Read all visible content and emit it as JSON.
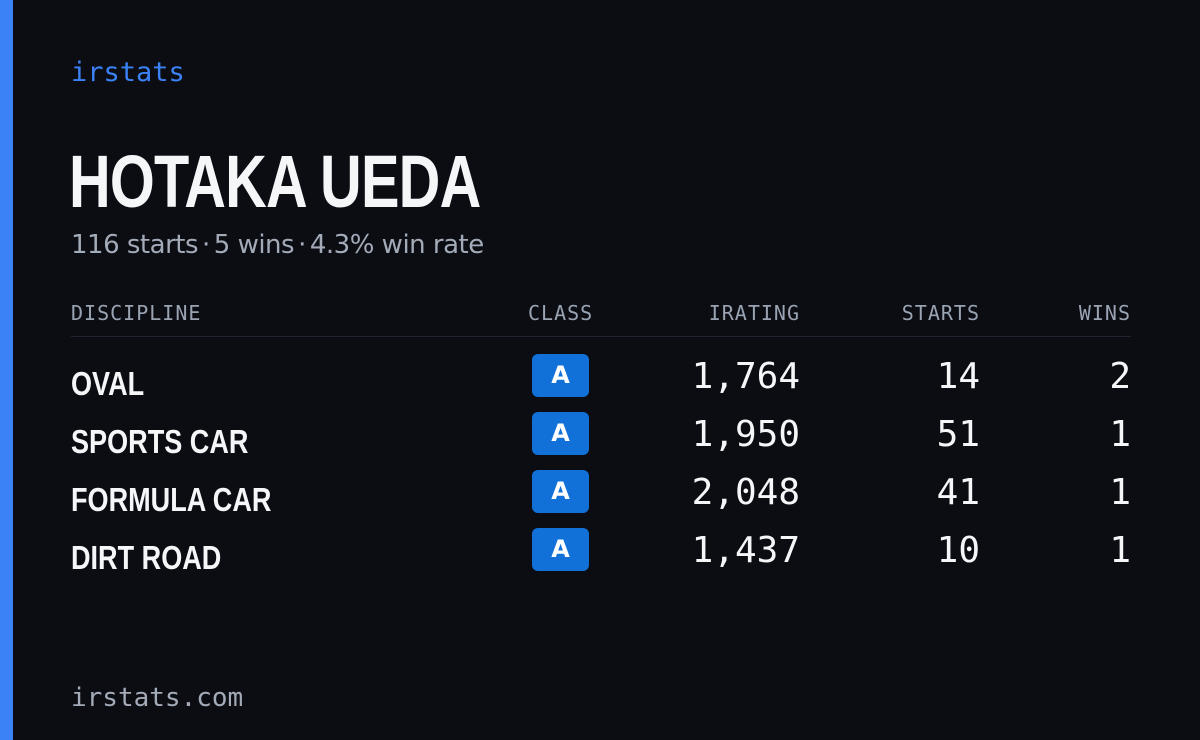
{
  "brand": "irstats",
  "player": {
    "name": "HOTAKA UEDA",
    "starts_text": "116 starts",
    "wins_text": "5 wins",
    "win_rate_text": "4.3% win rate",
    "separator": "·"
  },
  "table": {
    "headers": {
      "discipline": "DISCIPLINE",
      "class": "CLASS",
      "irating": "IRATING",
      "starts": "STARTS",
      "wins": "WINS"
    },
    "rows": [
      {
        "discipline": "OVAL",
        "class": "A",
        "irating": "1,764",
        "starts": "14",
        "wins": "2"
      },
      {
        "discipline": "SPORTS CAR",
        "class": "A",
        "irating": "1,950",
        "starts": "51",
        "wins": "1"
      },
      {
        "discipline": "FORMULA CAR",
        "class": "A",
        "irating": "2,048",
        "starts": "41",
        "wins": "1"
      },
      {
        "discipline": "DIRT ROAD",
        "class": "A",
        "irating": "1,437",
        "starts": "10",
        "wins": "1"
      }
    ]
  },
  "footer": {
    "url": "irstats.com"
  },
  "colors": {
    "background": "#0b0d13",
    "accent": "#3b82f6",
    "class_badge": "#1271d8",
    "text_primary": "#f5f6f8",
    "text_muted": "#a3aab8"
  }
}
